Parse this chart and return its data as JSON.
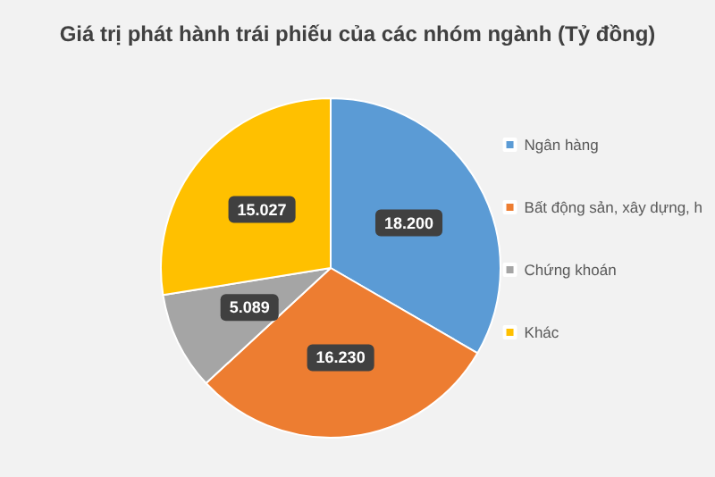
{
  "chart_data": {
    "type": "pie",
    "title": "Giá trị phát hành trái phiếu của các nhóm ngành (Tỷ đồng)",
    "categories": [
      "Ngân hàng",
      "Bất động sản, xây dựng, h",
      "Chứng khoán",
      "Khác"
    ],
    "values": [
      18200,
      16230,
      5089,
      15027
    ],
    "value_labels": [
      "18.200",
      "16.230",
      "5.089",
      "15.027"
    ],
    "colors": [
      "#5b9bd5",
      "#ed7d31",
      "#a5a5a5",
      "#ffc000"
    ],
    "legend": "right"
  }
}
